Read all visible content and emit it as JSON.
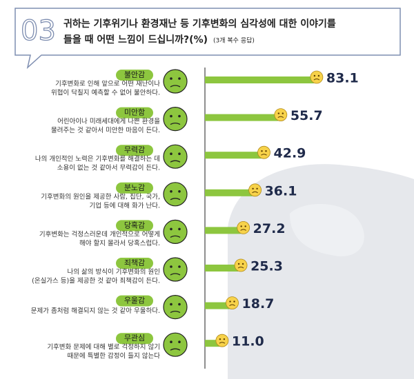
{
  "chart_data": {
    "type": "bar",
    "section_number": "03",
    "title": [
      "귀하는 기후위기나 환경재난 등 기후변화의 심각성에 대한 이야기를",
      "들을 때 어떤 느낌이 드십니까?(%)"
    ],
    "note": "(3개 복수 응답)",
    "categories": [
      "불안감",
      "미안함",
      "무력감",
      "분노감",
      "당혹감",
      "죄책감",
      "우울감",
      "무관심"
    ],
    "descriptions": [
      [
        "기후변화로 인해 앞으로 어떤 재난이나",
        "위협이 닥칠지 예측할 수 없어 불안하다."
      ],
      [
        "어린아이나 미래세대에게 나쁜 환경을",
        "물려주는 것 같아서 미안한 마음이 든다."
      ],
      [
        "나의 개인적인 노력은 기후변화를 해결하는 데",
        "소용이 없는 것 같아서 무력감이 든다."
      ],
      [
        "기후변화의 원인을 제공한 사람, 집단, 국가,",
        "기업 등에 대해 화가 난다."
      ],
      [
        "기후변화는 걱정스러운데 개인적으로 어떻게",
        "해야 할지 몰라서 당혹스럽다."
      ],
      [
        "나의 삶의 방식이 기후변화의 원인",
        "(온실가스 등)을 제공한 것 같아 죄책감이 든다."
      ],
      [
        "문제가 좀처럼 해결되지 않는 것 같아 우울하다."
      ],
      [
        "기후변화 문제에 대해 별로 걱정하지 않기",
        "때문에 특별한 감정이 들지 않는다"
      ]
    ],
    "values": [
      83.1,
      55.7,
      42.9,
      36.1,
      27.2,
      25.3,
      18.7,
      11.0
    ],
    "value_labels": [
      "83.1",
      "55.7",
      "42.9",
      "36.1",
      "27.2",
      "25.3",
      "18.7",
      "11.0"
    ],
    "color": "#8dc63f"
  }
}
